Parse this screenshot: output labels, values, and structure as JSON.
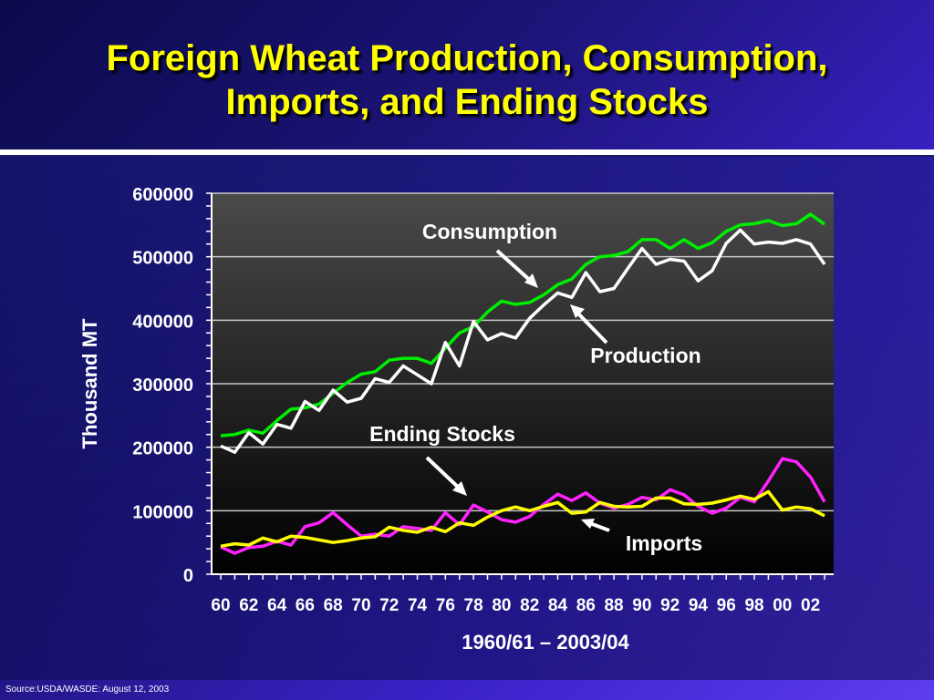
{
  "title": {
    "line1": "Foreign Wheat Production, Consumption,",
    "line2": "Imports, and Ending Stocks"
  },
  "source": "Source:USDA/WASDE: August 12, 2003",
  "chart_data": {
    "type": "line",
    "xlabel": "1960/61 – 2003/04",
    "ylabel": "Thousand MT",
    "ylim": [
      0,
      600000
    ],
    "yticks": [
      "0",
      "100000",
      "200000",
      "300000",
      "400000",
      "500000",
      "600000"
    ],
    "xticks": [
      "60",
      "62",
      "64",
      "66",
      "68",
      "70",
      "72",
      "74",
      "76",
      "78",
      "80",
      "82",
      "84",
      "86",
      "88",
      "90",
      "92",
      "94",
      "96",
      "98",
      "00",
      "02"
    ],
    "x": [
      1960,
      1961,
      1962,
      1963,
      1964,
      1965,
      1966,
      1967,
      1968,
      1969,
      1970,
      1971,
      1972,
      1973,
      1974,
      1975,
      1976,
      1977,
      1978,
      1979,
      1980,
      1981,
      1982,
      1983,
      1984,
      1985,
      1986,
      1987,
      1988,
      1989,
      1990,
      1991,
      1992,
      1993,
      1994,
      1995,
      1996,
      1997,
      1998,
      1999,
      2000,
      2001,
      2002,
      2003
    ],
    "grid": true,
    "series": [
      {
        "name": "Consumption",
        "color": "#00ee00",
        "values": [
          218000,
          220000,
          227000,
          222000,
          242000,
          260000,
          262000,
          268000,
          285000,
          302000,
          315000,
          319000,
          337000,
          340000,
          340000,
          332000,
          356000,
          380000,
          390000,
          413000,
          430000,
          425000,
          428000,
          440000,
          456000,
          465000,
          488000,
          500000,
          502000,
          508000,
          527000,
          527000,
          513000,
          527000,
          513000,
          522000,
          540000,
          550000,
          552000,
          557000,
          549000,
          552000,
          567000,
          551000
        ]
      },
      {
        "name": "Production",
        "color": "#ffffff",
        "values": [
          202000,
          192000,
          223000,
          205000,
          236000,
          230000,
          272000,
          258000,
          290000,
          271000,
          277000,
          308000,
          302000,
          328000,
          314000,
          300000,
          365000,
          328000,
          398000,
          369000,
          379000,
          372000,
          403000,
          424000,
          443000,
          436000,
          475000,
          445000,
          450000,
          482000,
          513000,
          488000,
          496000,
          493000,
          462000,
          478000,
          521000,
          542000,
          520000,
          523000,
          521000,
          527000,
          520000,
          488000
        ]
      },
      {
        "name": "Ending Stocks",
        "color": "#ff22ff",
        "values": [
          43000,
          33000,
          42000,
          44000,
          52000,
          46000,
          75000,
          81000,
          97000,
          78000,
          60000,
          63000,
          60000,
          75000,
          72000,
          69000,
          97000,
          78000,
          109000,
          98000,
          86000,
          82000,
          91000,
          110000,
          126000,
          116000,
          128000,
          112000,
          104000,
          110000,
          121000,
          117000,
          133000,
          125000,
          107000,
          96000,
          104000,
          121000,
          114000,
          147000,
          182000,
          177000,
          153000,
          114000
        ]
      },
      {
        "name": "Imports",
        "color": "#ffff00",
        "values": [
          44000,
          48000,
          46000,
          57000,
          51000,
          60000,
          58000,
          54000,
          50000,
          53000,
          57000,
          59000,
          74000,
          69000,
          66000,
          74000,
          67000,
          81000,
          77000,
          90000,
          100000,
          106000,
          100000,
          107000,
          113000,
          96000,
          98000,
          113000,
          107000,
          106000,
          107000,
          120000,
          120000,
          111000,
          110000,
          112000,
          117000,
          123000,
          118000,
          130000,
          101000,
          106000,
          103000,
          92000
        ]
      }
    ],
    "annotations": [
      "Consumption",
      "Production",
      "Ending Stocks",
      "Imports"
    ]
  }
}
